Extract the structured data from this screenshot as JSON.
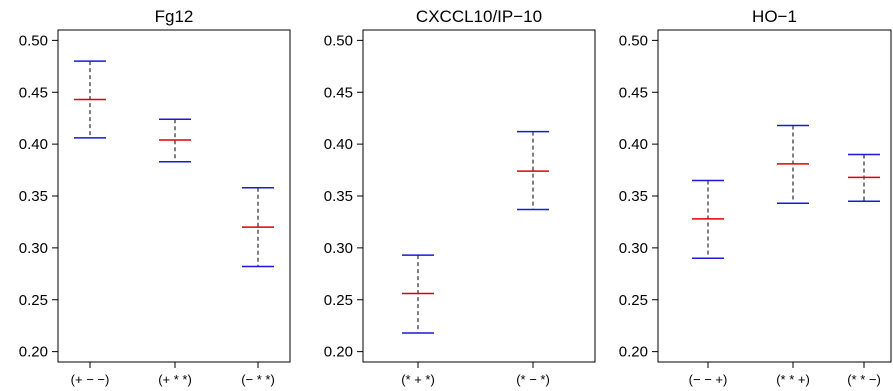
{
  "colors": {
    "center": "#e00000",
    "bounds": "#1a1ad6",
    "whisker": "#000000",
    "frame": "#000000"
  },
  "chart_data": [
    {
      "type": "errorbar",
      "title": "Fg12",
      "ylim": [
        0.19,
        0.51
      ],
      "yticks": [
        "0.20",
        "0.25",
        "0.30",
        "0.35",
        "0.40",
        "0.45",
        "0.50"
      ],
      "categories": [
        "(+ − −)",
        "(+ * *)",
        "(− * *)"
      ],
      "lower": [
        0.406,
        0.383,
        0.282
      ],
      "center": [
        0.443,
        0.404,
        0.32
      ],
      "upper": [
        0.48,
        0.424,
        0.358
      ]
    },
    {
      "type": "errorbar",
      "title": "CXCCL10/IP−10",
      "ylim": [
        0.19,
        0.51
      ],
      "yticks": [
        "0.20",
        "0.25",
        "0.30",
        "0.35",
        "0.40",
        "0.45",
        "0.50"
      ],
      "categories": [
        "(* + *)",
        "(* − *)"
      ],
      "lower": [
        0.218,
        0.337
      ],
      "center": [
        0.256,
        0.374
      ],
      "upper": [
        0.293,
        0.412
      ]
    },
    {
      "type": "errorbar",
      "title": "HO−1",
      "ylim": [
        0.19,
        0.51
      ],
      "yticks": [
        "0.20",
        "0.25",
        "0.30",
        "0.35",
        "0.40",
        "0.45",
        "0.50"
      ],
      "categories": [
        "(− − +)",
        "(* * +)",
        "(* * −)"
      ],
      "lower": [
        0.29,
        0.343,
        0.345
      ],
      "center": [
        0.328,
        0.381,
        0.368
      ],
      "upper": [
        0.365,
        0.418,
        0.39
      ]
    }
  ]
}
